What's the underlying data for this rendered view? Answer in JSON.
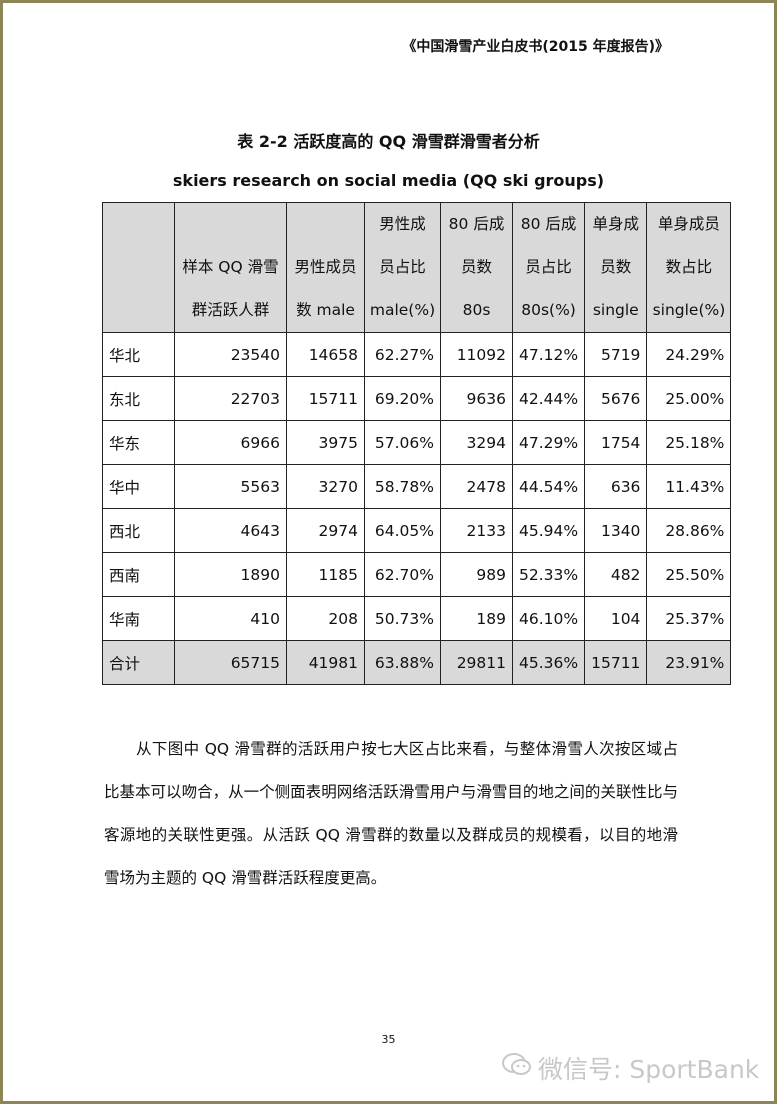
{
  "header": "《中国滑雪产业白皮书(2015 年度报告)》",
  "title": "表 2-2  活跃度高的 QQ 滑雪群滑雪者分析",
  "subtitle": "skiers research on social media (QQ ski groups)",
  "table": {
    "columns": [
      [
        "",
        ""
      ],
      [
        "样本 QQ 滑雪",
        "群活跃人群"
      ],
      [
        "男性成员",
        "数 male"
      ],
      [
        "男性成",
        "员占比",
        "male(%)"
      ],
      [
        "80 后成",
        "员数",
        "80s"
      ],
      [
        "80 后成",
        "员占比",
        "80s(%)"
      ],
      [
        "单身成",
        "员数",
        "single"
      ],
      [
        "单身成员",
        "数占比",
        "single(%)"
      ]
    ],
    "rows": [
      [
        "华北",
        "23540",
        "14658",
        "62.27%",
        "11092",
        "47.12%",
        "5719",
        "24.29%"
      ],
      [
        "东北",
        "22703",
        "15711",
        "69.20%",
        "9636",
        "42.44%",
        "5676",
        "25.00%"
      ],
      [
        "华东",
        "6966",
        "3975",
        "57.06%",
        "3294",
        "47.29%",
        "1754",
        "25.18%"
      ],
      [
        "华中",
        "5563",
        "3270",
        "58.78%",
        "2478",
        "44.54%",
        "636",
        "11.43%"
      ],
      [
        "西北",
        "4643",
        "2974",
        "64.05%",
        "2133",
        "45.94%",
        "1340",
        "28.86%"
      ],
      [
        "西南",
        "1890",
        "1185",
        "62.70%",
        "989",
        "52.33%",
        "482",
        "25.50%"
      ],
      [
        "华南",
        "410",
        "208",
        "50.73%",
        "189",
        "46.10%",
        "104",
        "25.37%"
      ]
    ],
    "total": [
      "合计",
      "65715",
      "41981",
      "63.88%",
      "29811",
      "45.36%",
      "15711",
      "23.91%"
    ]
  },
  "paragraph": "从下图中 QQ 滑雪群的活跃用户按七大区占比来看，与整体滑雪人次按区域占比基本可以吻合，从一个侧面表明网络活跃滑雪用户与滑雪目的地之间的关联性比与客源地的关联性更强。从活跃 QQ 滑雪群的数量以及群成员的规模看，以目的地滑雪场为主题的 QQ 滑雪群活跃程度更高。",
  "page_number": "35",
  "watermark": "微信号: SportBank"
}
